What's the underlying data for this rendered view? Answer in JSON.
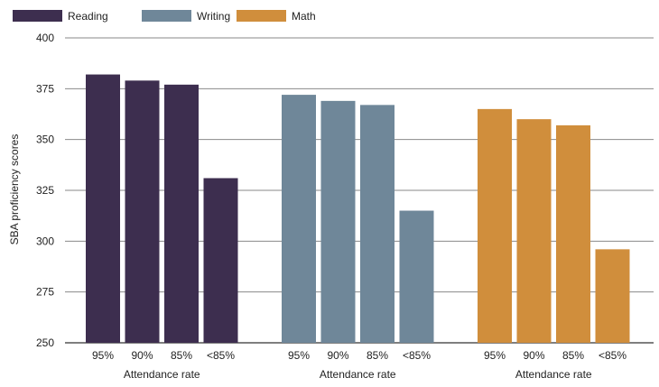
{
  "chart_data": {
    "type": "bar",
    "ylabel": "SBA proficiency scores",
    "xlabel": "Attendance rate",
    "ylim": [
      250,
      400
    ],
    "yticks": [
      250,
      275,
      300,
      325,
      350,
      375,
      400
    ],
    "categories": [
      "95%",
      "90%",
      "85%",
      "<85%"
    ],
    "grid": true,
    "legend_position": "top-left",
    "series": [
      {
        "name": "Reading",
        "color": "#3d2e4f",
        "values": [
          382,
          379,
          377,
          331
        ]
      },
      {
        "name": "Writing",
        "color": "#6f8799",
        "values": [
          372,
          369,
          367,
          315
        ]
      },
      {
        "name": "Math",
        "color": "#d08e3c",
        "values": [
          365,
          360,
          357,
          296
        ]
      }
    ]
  }
}
